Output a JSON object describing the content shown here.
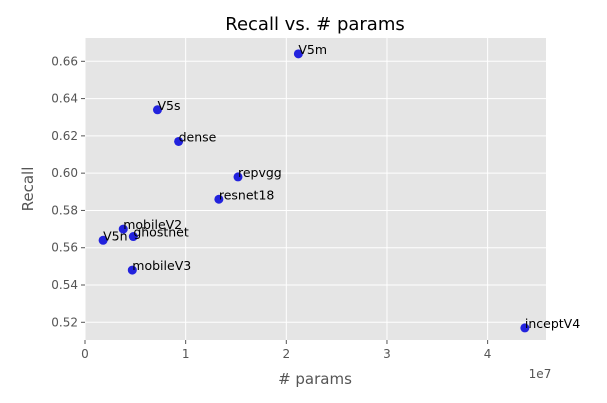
{
  "chart_data": {
    "type": "scatter",
    "title": "Recall vs. # params",
    "xlabel": "# params",
    "ylabel": "Recall",
    "x_offset_label": "1e7",
    "xlim": [
      0,
      4.58
    ],
    "ylim": [
      0.5105,
      0.6725
    ],
    "x_ticks": [
      0,
      1,
      2,
      3,
      4
    ],
    "x_tick_labels": [
      "0",
      "1",
      "2",
      "3",
      "4"
    ],
    "y_ticks": [
      0.52,
      0.54,
      0.56,
      0.58,
      0.6,
      0.62,
      0.64,
      0.66
    ],
    "y_tick_labels": [
      "0.52",
      "0.54",
      "0.56",
      "0.58",
      "0.60",
      "0.62",
      "0.64",
      "0.66"
    ],
    "grid": true,
    "point_color": "#2222dd",
    "points": [
      {
        "label": "V5m",
        "x": 2.12,
        "y": 0.664
      },
      {
        "label": "V5s",
        "x": 0.72,
        "y": 0.634
      },
      {
        "label": "dense",
        "x": 0.93,
        "y": 0.617
      },
      {
        "label": "repvgg",
        "x": 1.52,
        "y": 0.598
      },
      {
        "label": "resnet18",
        "x": 1.33,
        "y": 0.586
      },
      {
        "label": "mobileV2",
        "x": 0.38,
        "y": 0.57
      },
      {
        "label": "ghostnet",
        "x": 0.48,
        "y": 0.566
      },
      {
        "label": "V5n",
        "x": 0.18,
        "y": 0.564
      },
      {
        "label": "mobileV3",
        "x": 0.47,
        "y": 0.548
      },
      {
        "label": "inceptV4",
        "x": 4.37,
        "y": 0.517
      }
    ]
  }
}
